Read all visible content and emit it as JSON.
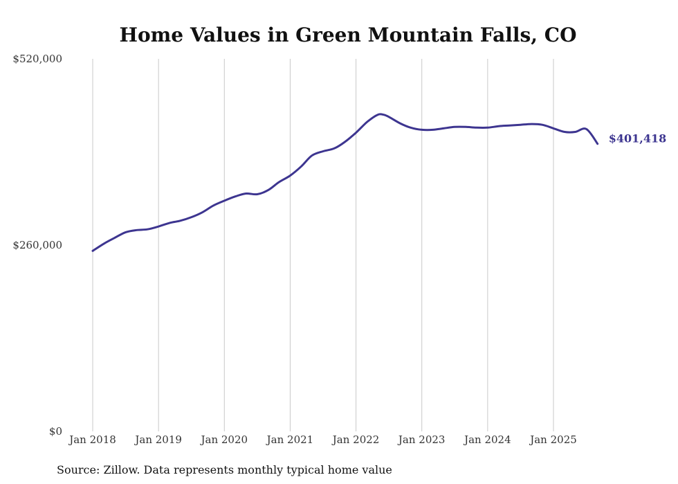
{
  "colors": {
    "series": "#3d3590",
    "grid": "#c8c8c8",
    "text": "#333333"
  },
  "source_text": "Source: Zillow. Data represents monthly typical home value",
  "chart_data": {
    "type": "line",
    "title": "Home Values in Green Mountain Falls, CO",
    "xlabel": "",
    "ylabel": "",
    "ylim": [
      0,
      520000
    ],
    "grid": "vertical",
    "y_ticks": [
      {
        "value": 0,
        "label": "$0"
      },
      {
        "value": 260000,
        "label": "$260,000"
      },
      {
        "value": 520000,
        "label": "$520,000"
      }
    ],
    "x_ticks": [
      {
        "value": 2018,
        "label": "Jan 2018"
      },
      {
        "value": 2019,
        "label": "Jan 2019"
      },
      {
        "value": 2020,
        "label": "Jan 2020"
      },
      {
        "value": 2021,
        "label": "Jan 2021"
      },
      {
        "value": 2022,
        "label": "Jan 2022"
      },
      {
        "value": 2023,
        "label": "Jan 2023"
      },
      {
        "value": 2024,
        "label": "Jan 2024"
      },
      {
        "value": 2025,
        "label": "Jan 2025"
      }
    ],
    "xlim": [
      2018,
      2025.75
    ],
    "end_label": "$401,418",
    "series": [
      {
        "name": "Typical home value",
        "x": [
          2018.0,
          2018.17,
          2018.33,
          2018.5,
          2018.67,
          2018.83,
          2019.0,
          2019.17,
          2019.33,
          2019.5,
          2019.67,
          2019.83,
          2020.0,
          2020.17,
          2020.33,
          2020.5,
          2020.67,
          2020.83,
          2021.0,
          2021.17,
          2021.33,
          2021.5,
          2021.67,
          2021.83,
          2022.0,
          2022.17,
          2022.33,
          2022.42,
          2022.5,
          2022.67,
          2022.83,
          2023.0,
          2023.17,
          2023.33,
          2023.5,
          2023.67,
          2023.83,
          2024.0,
          2024.17,
          2024.33,
          2024.5,
          2024.67,
          2024.83,
          2025.0,
          2025.17,
          2025.33,
          2025.5,
          2025.67,
          2025.75
        ],
        "values": [
          252000,
          262000,
          270000,
          278000,
          281000,
          282000,
          286000,
          291000,
          294000,
          299000,
          306000,
          315000,
          322000,
          328000,
          332000,
          331000,
          337000,
          348000,
          357000,
          370000,
          385000,
          391000,
          395000,
          404000,
          417000,
          432000,
          442000,
          442000,
          439000,
          430000,
          424000,
          421000,
          421000,
          423000,
          425000,
          425000,
          424000,
          424000,
          426000,
          427000,
          428000,
          429000,
          428000,
          423000,
          418000,
          418000,
          422000,
          401418,
          401418
        ]
      }
    ]
  }
}
